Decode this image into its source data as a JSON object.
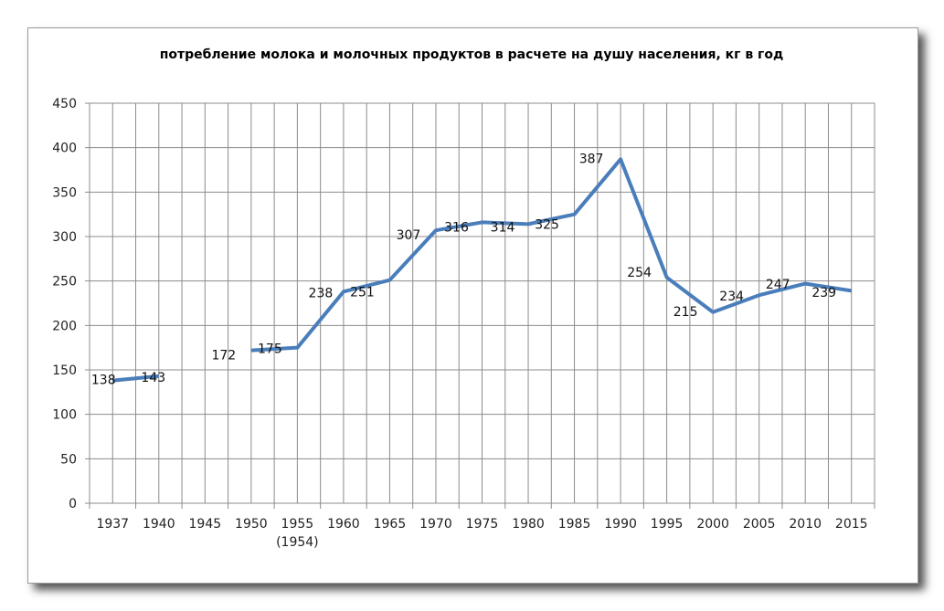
{
  "chart_data": {
    "type": "line",
    "title": "потребление молока и молочных продуктов в расчете на душу населения, кг в год",
    "xlabel": "",
    "ylabel": "",
    "categories": [
      "1937",
      "1940",
      "1945",
      "1950",
      "1955",
      "1960",
      "1965",
      "1970",
      "1975",
      "1980",
      "1985",
      "1990",
      "1995",
      "2000",
      "2005",
      "2010",
      "2015"
    ],
    "category_sublabels": {
      "1955": "(1954)"
    },
    "series": [
      {
        "name": "потребление",
        "color": "#4a7ebb",
        "values": [
          138,
          143,
          null,
          172,
          175,
          238,
          251,
          307,
          316,
          314,
          325,
          387,
          254,
          215,
          234,
          247,
          239
        ]
      }
    ],
    "ylim": [
      0,
      450
    ],
    "yticks": [
      0,
      50,
      100,
      150,
      200,
      250,
      300,
      350,
      400,
      450
    ],
    "grid": true,
    "legend": "none",
    "data_labels": true
  }
}
